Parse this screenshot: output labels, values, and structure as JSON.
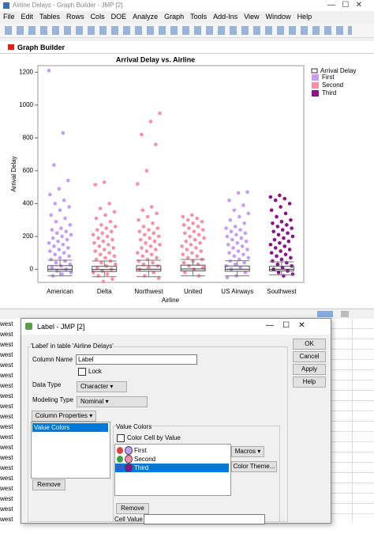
{
  "window": {
    "title": "Airline Delays - Graph Builder - JMP [2]",
    "menu": [
      "File",
      "Edit",
      "Tables",
      "Rows",
      "Cols",
      "DOE",
      "Analyze",
      "Graph",
      "Tools",
      "Add-Ins",
      "View",
      "Window",
      "Help"
    ]
  },
  "graph_builder": {
    "header": "Graph Builder"
  },
  "chart_data": {
    "type": "box",
    "title": "Arrival Delay vs. Airline",
    "x_label": "Airline",
    "y_label": "Arrival Delay",
    "categories": [
      "American",
      "Delta",
      "Northwest",
      "United",
      "US Airways",
      "Southwest"
    ],
    "category_colors": [
      "#c79cf7",
      "#f98fa7",
      "#f98fa7",
      "#f98fa7",
      "#c79cf7",
      "#8e0f8e"
    ],
    "ylim": [
      -80,
      1240
    ],
    "yticks": [
      0,
      200,
      400,
      600,
      800,
      1000,
      1200
    ],
    "legend": {
      "title": "Arrival Delay"
    },
    "series": [
      {
        "name": "First",
        "color": "#c79cf7"
      },
      {
        "name": "Second",
        "color": "#f98fa7"
      },
      {
        "name": "Third",
        "color": "#8e0f8e"
      }
    ],
    "boxes": [
      {
        "low": -40,
        "q1": -12,
        "median": 0,
        "q3": 22,
        "high": 55
      },
      {
        "low": -45,
        "q1": -14,
        "median": -2,
        "q3": 18,
        "high": 50
      },
      {
        "low": -45,
        "q1": -12,
        "median": 0,
        "q3": 22,
        "high": 55
      },
      {
        "low": -40,
        "q1": -10,
        "median": 2,
        "q3": 25,
        "high": 60
      },
      {
        "low": -40,
        "q1": -12,
        "median": 0,
        "q3": 20,
        "high": 52
      },
      {
        "low": -35,
        "q1": -10,
        "median": 0,
        "q3": 18,
        "high": 45
      }
    ],
    "points": [
      [
        1210,
        830,
        635,
        540,
        490,
        455,
        420,
        400,
        380,
        360,
        330,
        310,
        290,
        270,
        250,
        240,
        230,
        220,
        210,
        200,
        190,
        180,
        170,
        160,
        150,
        140,
        130,
        120,
        110,
        100,
        90,
        80,
        70,
        60,
        50,
        40,
        30,
        20,
        10,
        0,
        -10,
        -20,
        -30,
        -40
      ],
      [
        530,
        515,
        400,
        370,
        350,
        330,
        310,
        290,
        270,
        260,
        250,
        240,
        230,
        220,
        210,
        200,
        190,
        180,
        170,
        160,
        150,
        140,
        130,
        120,
        110,
        100,
        90,
        80,
        70,
        60,
        50,
        40,
        30,
        20,
        10,
        0,
        -10,
        -20,
        -30,
        -40,
        -60,
        -75
      ],
      [
        950,
        900,
        820,
        760,
        600,
        520,
        380,
        360,
        340,
        320,
        300,
        280,
        260,
        250,
        240,
        230,
        220,
        210,
        200,
        190,
        180,
        170,
        160,
        150,
        140,
        130,
        120,
        110,
        100,
        90,
        80,
        70,
        60,
        50,
        40,
        30,
        20,
        10,
        0,
        -20,
        -40,
        -55
      ],
      [
        330,
        320,
        310,
        300,
        290,
        280,
        270,
        260,
        250,
        240,
        230,
        220,
        210,
        200,
        190,
        180,
        170,
        160,
        150,
        140,
        130,
        120,
        110,
        100,
        90,
        80,
        70,
        60,
        50,
        40,
        30,
        20,
        10,
        0,
        -20,
        -40
      ],
      [
        470,
        465,
        420,
        390,
        360,
        340,
        320,
        300,
        280,
        260,
        250,
        240,
        230,
        220,
        210,
        200,
        190,
        180,
        170,
        160,
        150,
        140,
        130,
        120,
        110,
        100,
        90,
        80,
        70,
        60,
        50,
        40,
        30,
        20,
        10,
        0,
        -20,
        -40,
        -50
      ],
      [
        450,
        440,
        430,
        420,
        400,
        380,
        360,
        340,
        320,
        300,
        290,
        280,
        270,
        260,
        250,
        240,
        230,
        220,
        210,
        200,
        190,
        180,
        170,
        160,
        150,
        140,
        130,
        120,
        110,
        100,
        90,
        80,
        70,
        60,
        50,
        40,
        30,
        20,
        10,
        0,
        -10,
        -20,
        -30,
        -40
      ]
    ]
  },
  "data_table": {
    "rows": [
      "west",
      "west",
      "west",
      "west",
      "west",
      "west",
      "west",
      "west",
      "west",
      "west",
      "west",
      "west",
      "west",
      "west",
      "west",
      "west",
      "west",
      "west",
      "west",
      "west"
    ]
  },
  "dialog": {
    "title": "Label - JMP [2]",
    "group_title": "'Label' in table 'Airline Delays'",
    "column_name_label": "Column Name",
    "column_name": "Label",
    "lock": "Lock",
    "data_type_label": "Data Type",
    "data_type": "Character",
    "modeling_type_label": "Modeling Type",
    "modeling_type": "Nominal",
    "column_properties": "Column Properties",
    "properties": [
      "Value Colors"
    ],
    "remove": "Remove",
    "value_colors_title": "Value Colors",
    "color_cell_by_value": "Color Cell by Value",
    "value_colors": [
      {
        "name": "First",
        "color": "#c79cf7"
      },
      {
        "name": "Second",
        "color": "#f98fa7"
      },
      {
        "name": "Third",
        "color": "#8e0f8e"
      }
    ],
    "macros": "Macros",
    "color_theme": "Color Theme...",
    "remove_color": "Remove",
    "cell_value_label": "Cell Value",
    "buttons": [
      "OK",
      "Cancel",
      "Apply",
      "Help"
    ]
  }
}
